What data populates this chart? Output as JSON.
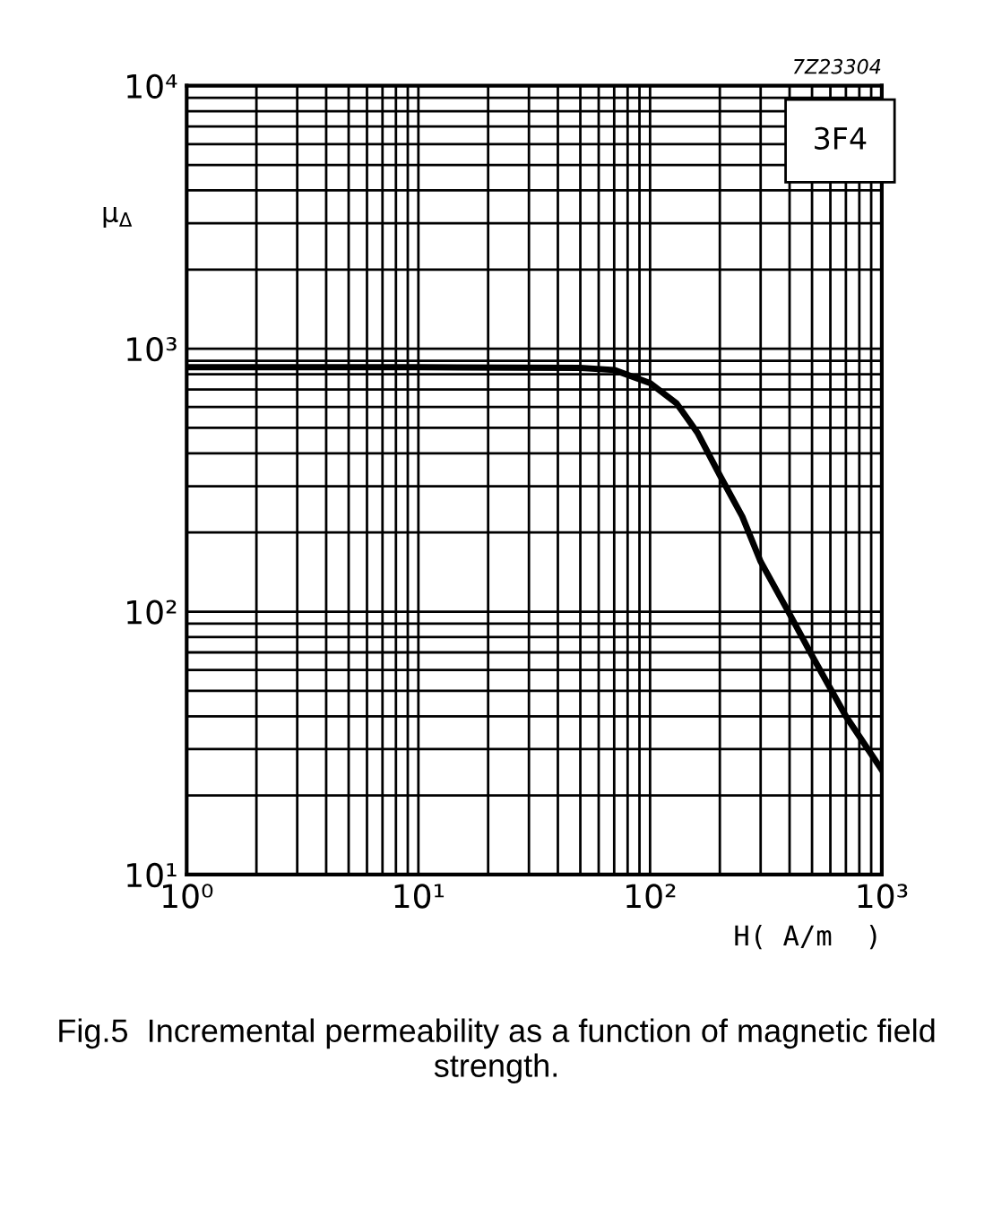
{
  "chart_data": {
    "type": "line",
    "title": "Fig.5  Incremental permeability as a function of magnetic field strength.",
    "xlabel": "H( A/m  )",
    "ylabel": "μ$_{Δ}$",
    "annotations": [
      "7Z23304",
      "3F4"
    ],
    "log": "xy",
    "grid": true,
    "marker": "none",
    "line_style": "solid",
    "xlim": [
      1,
      1000
    ],
    "ylim": [
      10,
      10000
    ],
    "xticks": [
      {
        "value": 1,
        "label": "10⁰"
      },
      {
        "value": 2,
        "label": null
      },
      {
        "value": 3,
        "label": null
      },
      {
        "value": 4,
        "label": null
      },
      {
        "value": 5,
        "label": null
      },
      {
        "value": 6,
        "label": null
      },
      {
        "value": 7,
        "label": null
      },
      {
        "value": 8,
        "label": null
      },
      {
        "value": 9,
        "label": null
      },
      {
        "value": 10,
        "label": "10¹"
      },
      {
        "value": 20,
        "label": null
      },
      {
        "value": 30,
        "label": null
      },
      {
        "value": 40,
        "label": null
      },
      {
        "value": 50,
        "label": null
      },
      {
        "value": 60,
        "label": null
      },
      {
        "value": 70,
        "label": null
      },
      {
        "value": 80,
        "label": null
      },
      {
        "value": 90,
        "label": null
      },
      {
        "value": 100,
        "label": "10²"
      },
      {
        "value": 200,
        "label": null
      },
      {
        "value": 300,
        "label": null
      },
      {
        "value": 400,
        "label": null
      },
      {
        "value": 500,
        "label": null
      },
      {
        "value": 600,
        "label": null
      },
      {
        "value": 700,
        "label": null
      },
      {
        "value": 800,
        "label": null
      },
      {
        "value": 900,
        "label": null
      },
      {
        "value": 1000,
        "label": "10³"
      }
    ],
    "yticks": [
      {
        "value": 10,
        "label": "10¹"
      },
      {
        "value": 20,
        "label": null
      },
      {
        "value": 30,
        "label": null
      },
      {
        "value": 40,
        "label": null
      },
      {
        "value": 50,
        "label": null
      },
      {
        "value": 60,
        "label": null
      },
      {
        "value": 70,
        "label": null
      },
      {
        "value": 80,
        "label": null
      },
      {
        "value": 90,
        "label": null
      },
      {
        "value": 100,
        "label": "10²"
      },
      {
        "value": 200,
        "label": null
      },
      {
        "value": 300,
        "label": null
      },
      {
        "value": 400,
        "label": null
      },
      {
        "value": 500,
        "label": null
      },
      {
        "value": 600,
        "label": null
      },
      {
        "value": 700,
        "label": null
      },
      {
        "value": 800,
        "label": null
      },
      {
        "value": 900,
        "label": null
      },
      {
        "value": 1000,
        "label": "10³"
      },
      {
        "value": 2000,
        "label": null
      },
      {
        "value": 3000,
        "label": null
      },
      {
        "value": 4000,
        "label": null
      },
      {
        "value": 5000,
        "label": null
      },
      {
        "value": 6000,
        "label": null
      },
      {
        "value": 7000,
        "label": null
      },
      {
        "value": 8000,
        "label": null
      },
      {
        "value": 9000,
        "label": null
      },
      {
        "value": 10000,
        "label": "10⁴"
      }
    ],
    "series": [
      {
        "color": "#000000",
        "x": [
          1,
          10,
          50,
          70,
          100,
          130,
          160,
          200,
          250,
          300,
          400,
          500,
          700,
          1000
        ],
        "values": [
          850,
          850,
          845,
          830,
          740,
          620,
          480,
          330,
          230,
          155,
          98,
          68,
          40,
          25
        ]
      }
    ]
  }
}
